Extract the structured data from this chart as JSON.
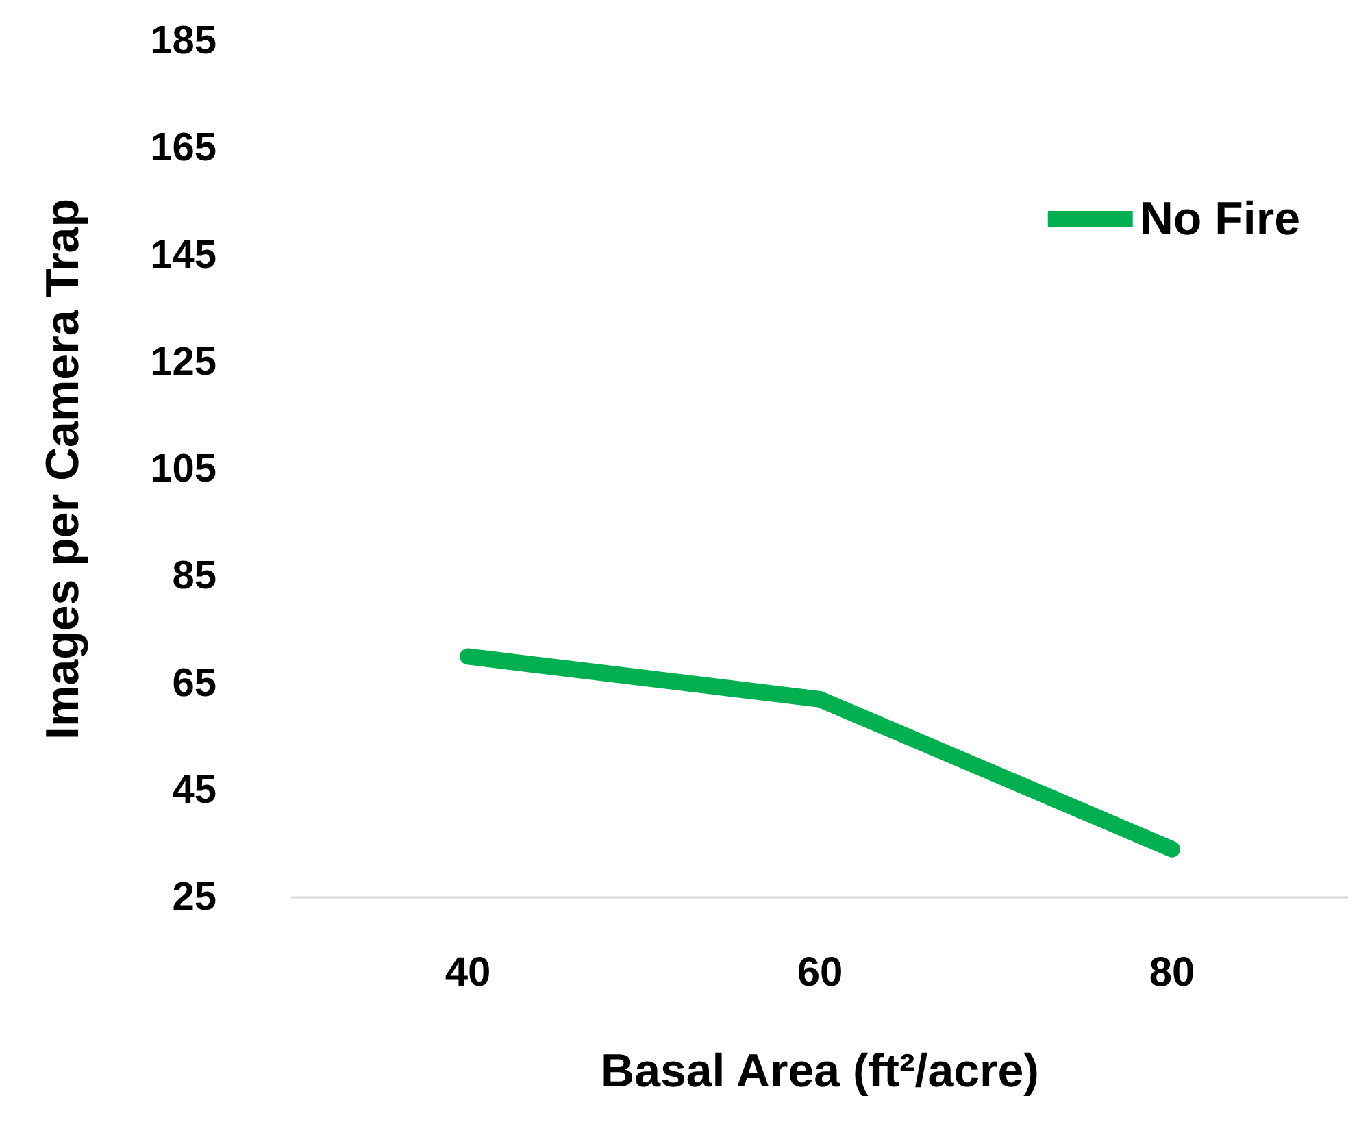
{
  "chart_data": {
    "type": "line",
    "xlabel": "Basal Area (ft²/acre)",
    "ylabel": "Images per Camera Trap",
    "categories": [
      "40",
      "60",
      "80"
    ],
    "series": [
      {
        "name": "No Fire",
        "color": "#00b050",
        "values": [
          70,
          62,
          34
        ]
      }
    ],
    "ylim": [
      25,
      185
    ],
    "yticks": [
      25,
      45,
      65,
      85,
      105,
      125,
      145,
      165,
      185
    ],
    "grid": false,
    "legend": "top right",
    "line_style": "solid"
  }
}
